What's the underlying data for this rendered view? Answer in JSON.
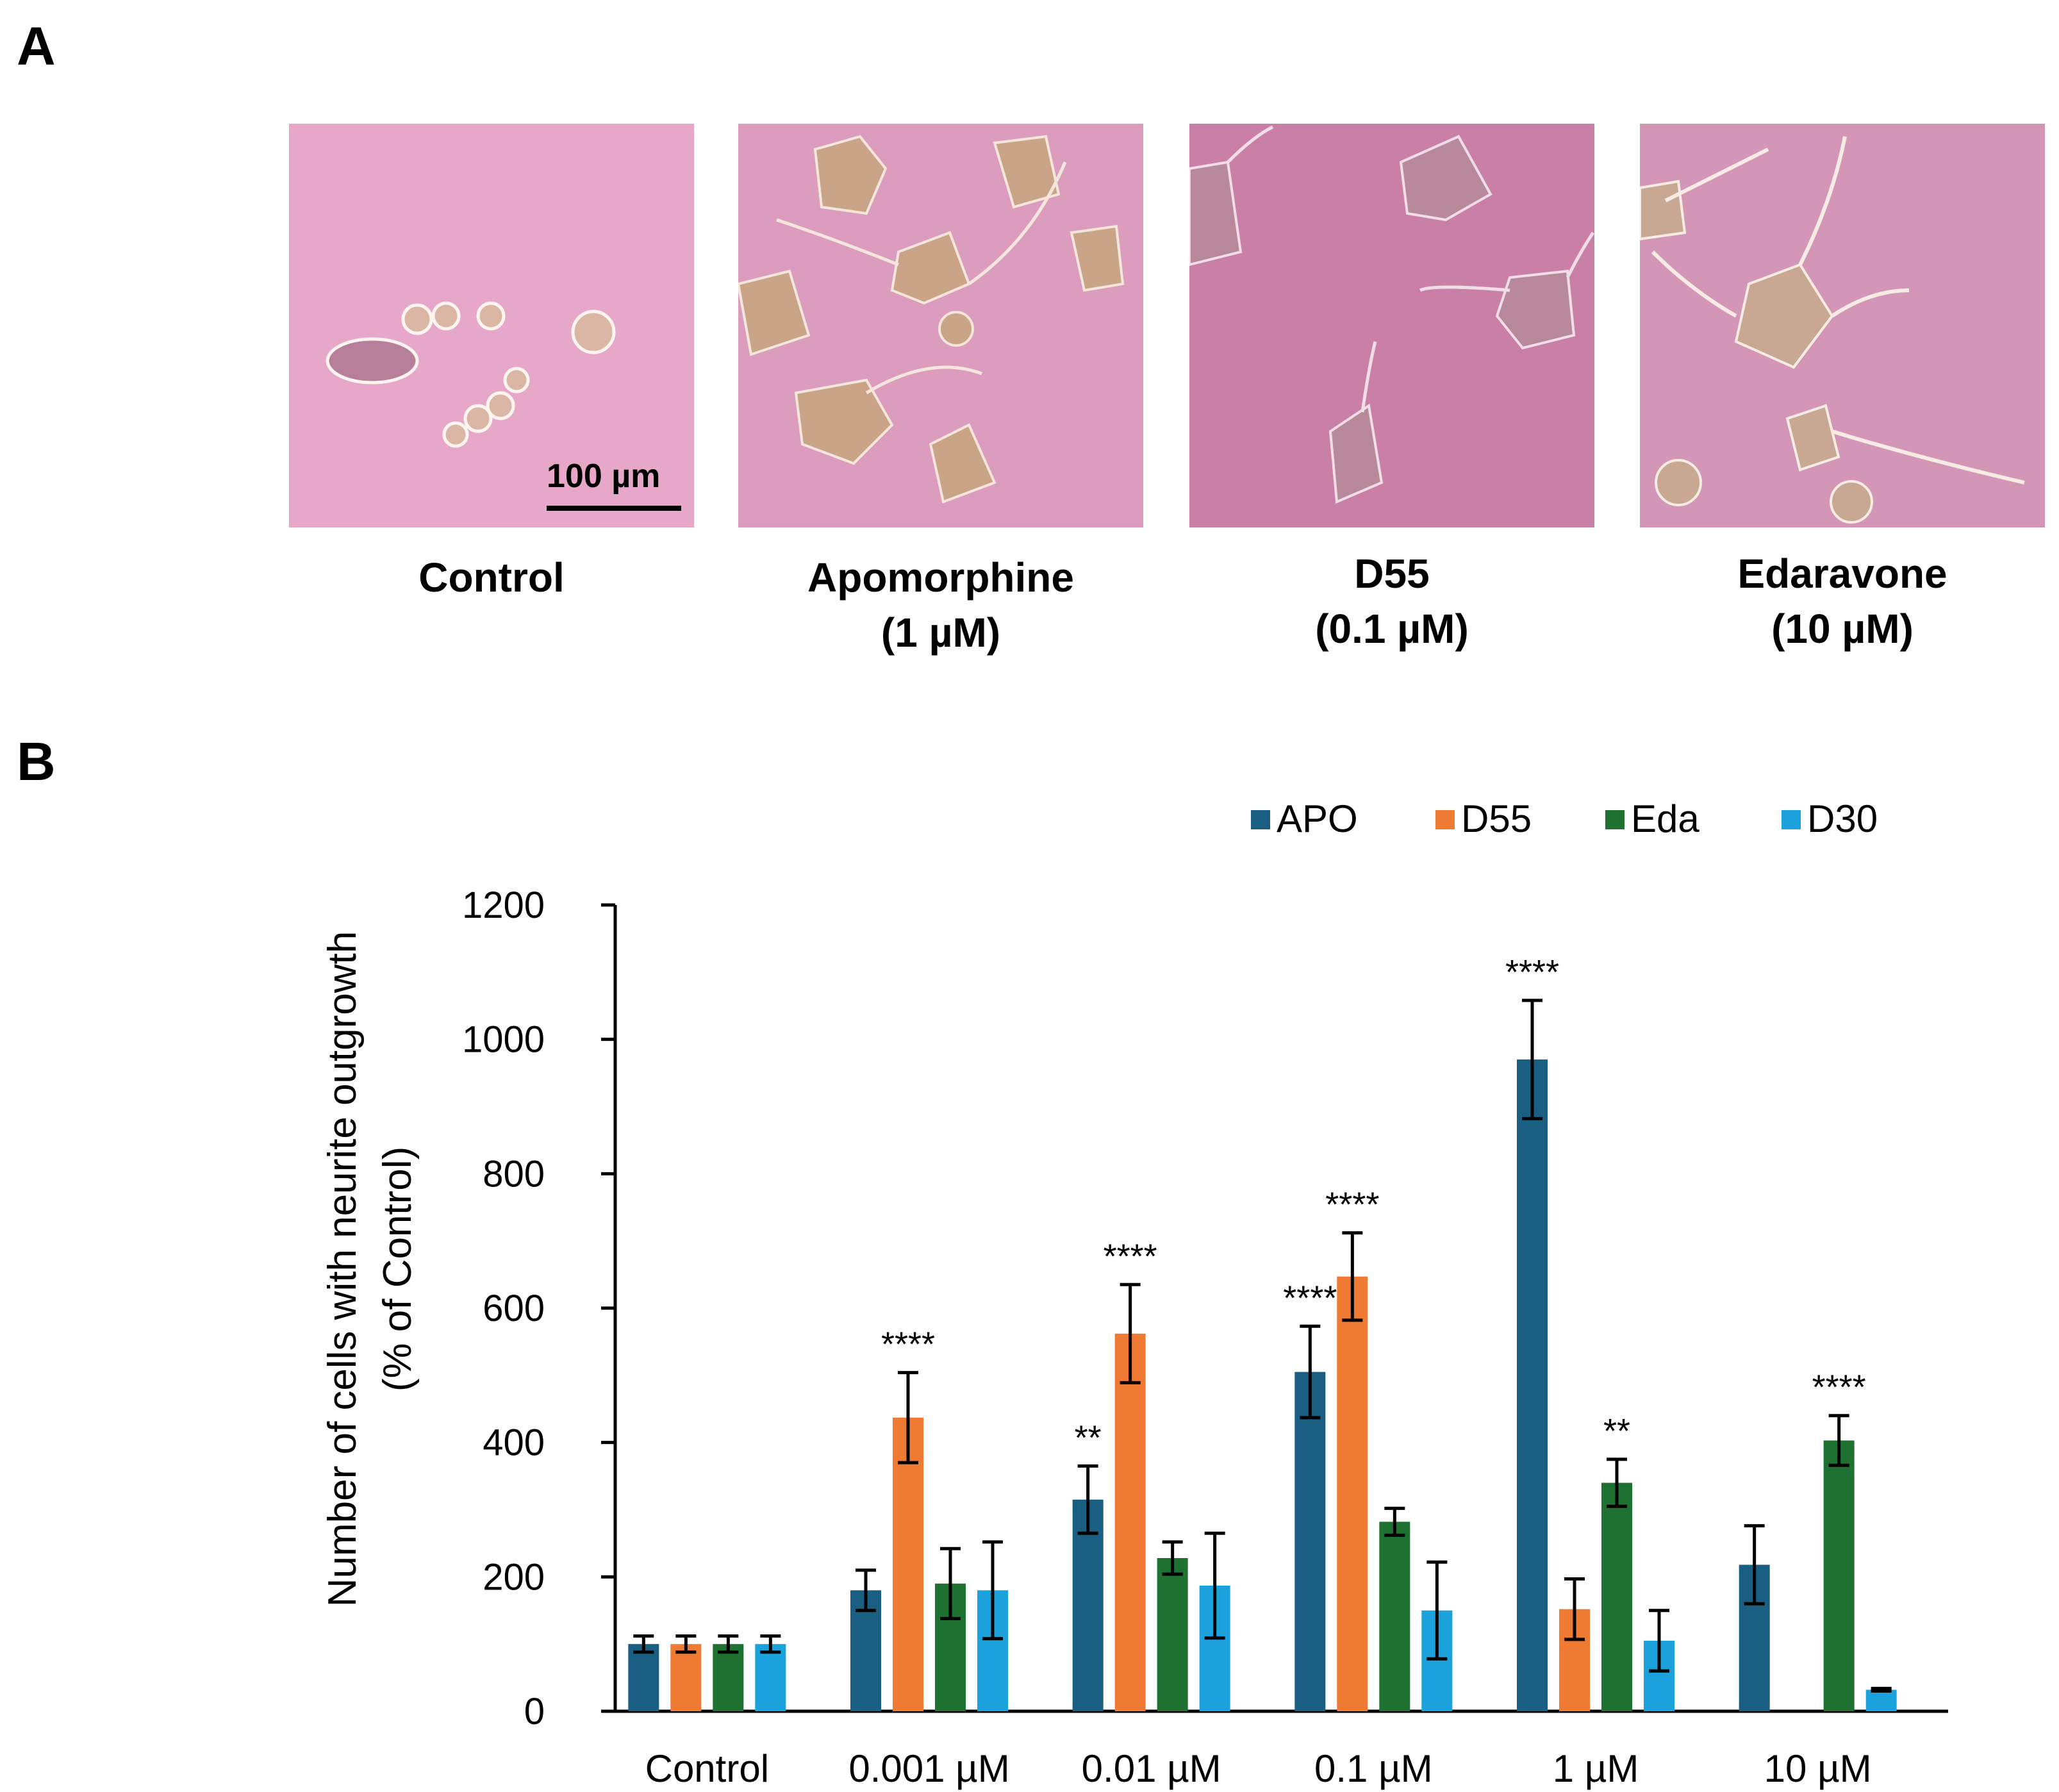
{
  "panel_a": {
    "letter": "A",
    "images": [
      {
        "label_lines": [
          "Control"
        ]
      },
      {
        "label_lines": [
          "Apomorphine",
          "(1 µM)"
        ]
      },
      {
        "label_lines": [
          "D55",
          "(0.1 µM)"
        ]
      },
      {
        "label_lines": [
          "Edaravone",
          "(10 µM)"
        ]
      }
    ],
    "scale_bar_label": "100 µm"
  },
  "panel_b": {
    "letter": "B"
  },
  "colors": {
    "APO": "#1a5e82",
    "D55": "#ee7a34",
    "Eda": "#1f7131",
    "D30": "#1ba1dc",
    "micrograph_bg": "#e7a7c8",
    "cell": "#c8a58a"
  },
  "chart_data": {
    "type": "bar",
    "title": "",
    "xlabel": "",
    "ylabel_lines": [
      "Number of cells with neurite outgrowth",
      "(% of Control)"
    ],
    "ylim": [
      0,
      1200
    ],
    "yticks": [
      0,
      200,
      400,
      600,
      800,
      1000,
      1200
    ],
    "legend_position": "top-right",
    "categories": [
      "Control",
      "0.001 µM",
      "0.01 µM",
      "0.1 µM",
      "1 µM",
      "10 µM"
    ],
    "series": [
      {
        "name": "APO",
        "values": [
          100,
          180,
          315,
          505,
          970,
          218
        ],
        "errors": [
          12,
          30,
          50,
          68,
          88,
          58
        ],
        "annotations": [
          "",
          "",
          "**",
          "****",
          "****",
          ""
        ]
      },
      {
        "name": "D55",
        "values": [
          100,
          437,
          562,
          647,
          152,
          null
        ],
        "errors": [
          12,
          67,
          73,
          65,
          45,
          null
        ],
        "annotations": [
          "",
          "****",
          "****",
          "****",
          "",
          ""
        ]
      },
      {
        "name": "Eda",
        "values": [
          100,
          190,
          228,
          282,
          340,
          403
        ],
        "errors": [
          12,
          52,
          24,
          20,
          35,
          37
        ],
        "annotations": [
          "",
          "",
          "",
          "",
          "**",
          "****"
        ]
      },
      {
        "name": "D30",
        "values": [
          100,
          180,
          187,
          150,
          105,
          32
        ],
        "errors": [
          12,
          72,
          78,
          72,
          45,
          2
        ],
        "annotations": [
          "",
          "",
          "",
          "",
          "",
          ""
        ]
      }
    ]
  }
}
